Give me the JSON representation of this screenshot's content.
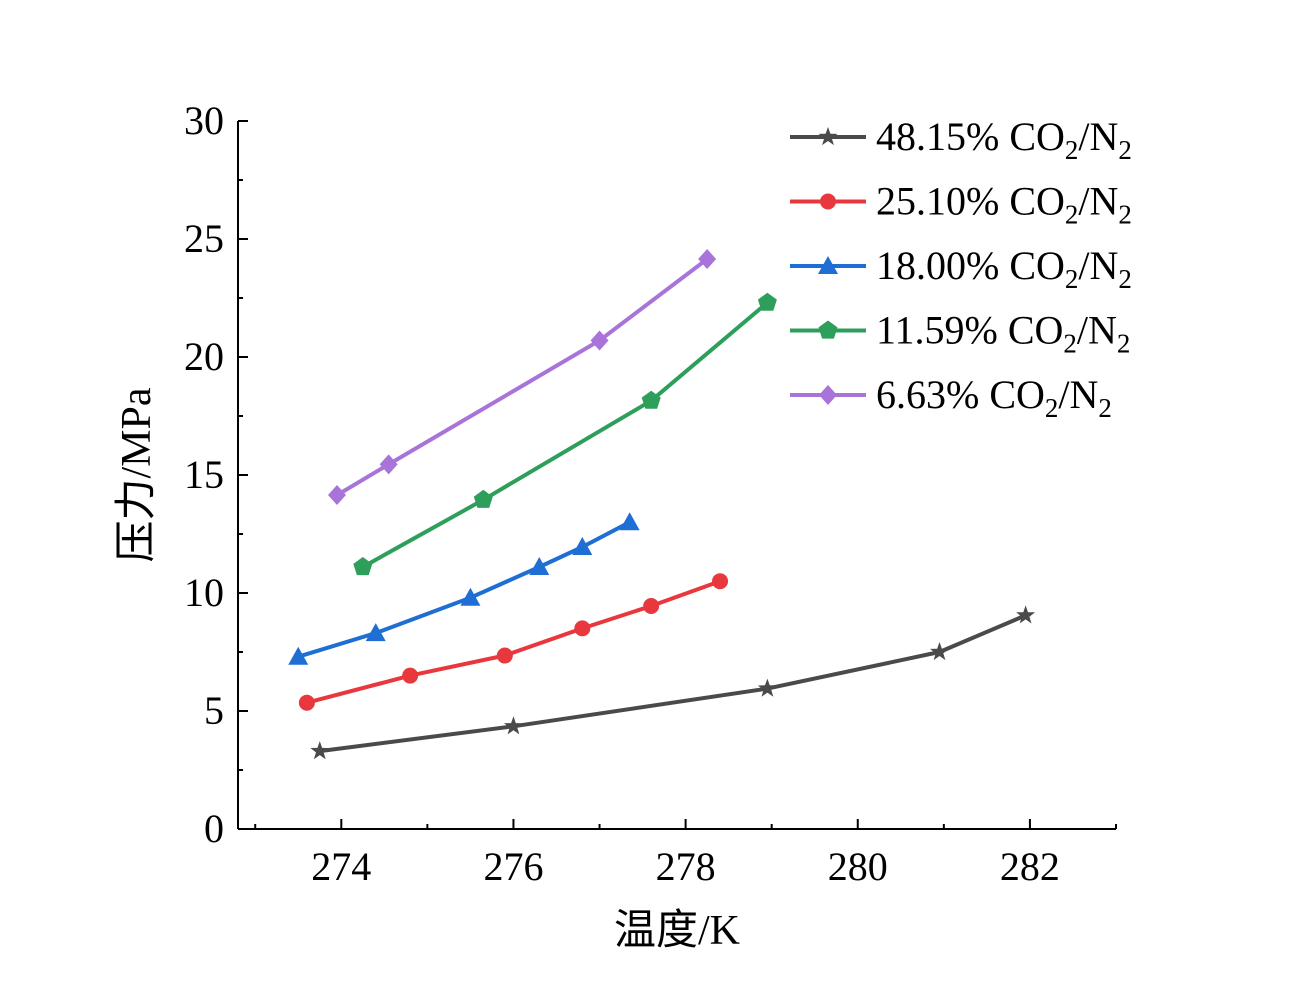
{
  "chart_data": {
    "type": "line",
    "xlabel": "温度/K",
    "ylabel": "压力/MPa",
    "xlim": [
      272.8,
      283.0
    ],
    "ylim": [
      0,
      30
    ],
    "xticks": [
      274,
      276,
      278,
      280,
      282
    ],
    "yticks": [
      0,
      5,
      10,
      15,
      20,
      25,
      30
    ],
    "grid": false,
    "legend_position": "top-right",
    "series": [
      {
        "name": "48.15% CO2/N2",
        "legend_main": "48.15% CO",
        "legend_sub1": "2",
        "legend_mid": "/N",
        "legend_sub2": "2",
        "color": "#4a4a4a",
        "marker": "star",
        "x": [
          273.75,
          276.0,
          278.95,
          280.95,
          281.95
        ],
        "y": [
          3.3,
          4.35,
          5.95,
          7.5,
          9.05
        ]
      },
      {
        "name": "25.10% CO2/N2",
        "legend_main": "25.10% CO",
        "legend_sub1": "2",
        "legend_mid": "/N",
        "legend_sub2": "2",
        "color": "#e8383d",
        "marker": "circle",
        "x": [
          273.6,
          274.8,
          275.9,
          276.8,
          277.6,
          278.4
        ],
        "y": [
          5.35,
          6.5,
          7.35,
          8.5,
          9.45,
          10.5
        ]
      },
      {
        "name": "18.00% CO2/N2",
        "legend_main": "18.00% CO",
        "legend_sub1": "2",
        "legend_mid": "/N",
        "legend_sub2": "2",
        "color": "#1f6ed4",
        "marker": "triangle",
        "x": [
          273.5,
          274.4,
          275.5,
          276.3,
          276.8,
          277.35
        ],
        "y": [
          7.3,
          8.3,
          9.8,
          11.1,
          11.95,
          13.0
        ]
      },
      {
        "name": "11.59% CO2/N2",
        "legend_main": "11.59% CO",
        "legend_sub1": "2",
        "legend_mid": "/N",
        "legend_sub2": "2",
        "color": "#2e9e5b",
        "marker": "pentagon",
        "x": [
          274.25,
          275.65,
          277.6,
          278.95
        ],
        "y": [
          11.1,
          13.95,
          18.15,
          22.3
        ]
      },
      {
        "name": "6.63% CO2/N2",
        "legend_main": "6.63% CO",
        "legend_sub1": "2",
        "legend_mid": "/N",
        "legend_sub2": "2",
        "color": "#a874d9",
        "marker": "diamond",
        "x": [
          273.95,
          274.55,
          277.0,
          278.25
        ],
        "y": [
          14.15,
          15.45,
          20.7,
          24.15
        ]
      }
    ]
  }
}
